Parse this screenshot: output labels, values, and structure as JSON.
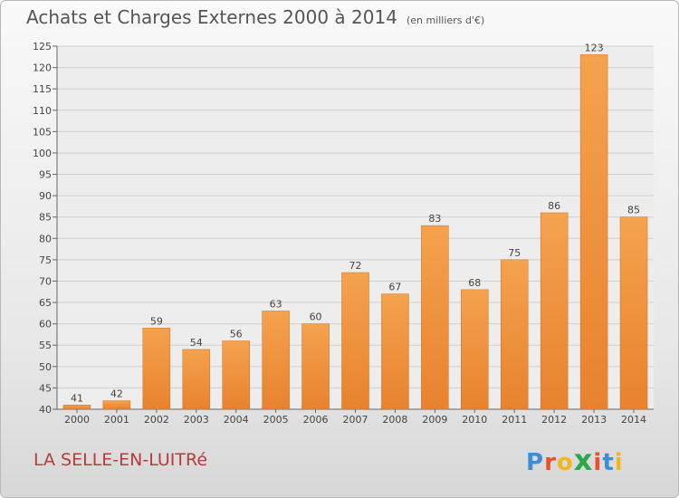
{
  "chart_data": {
    "type": "bar",
    "title": "Achats et Charges Externes 2000 à 2014",
    "subtitle": "(en milliers d'€)",
    "categories": [
      "2000",
      "2001",
      "2002",
      "2003",
      "2004",
      "2005",
      "2006",
      "2007",
      "2008",
      "2009",
      "2010",
      "2011",
      "2012",
      "2013",
      "2014"
    ],
    "values": [
      41,
      42,
      59,
      54,
      56,
      63,
      60,
      72,
      67,
      83,
      68,
      75,
      86,
      123,
      85
    ],
    "ylim": [
      40,
      125
    ],
    "yticks": [
      40,
      45,
      50,
      55,
      60,
      65,
      70,
      75,
      80,
      85,
      90,
      95,
      100,
      105,
      110,
      115,
      120,
      125
    ],
    "grid": true,
    "bar_color": "#e8822f",
    "bar_color_light": "#f4a24e"
  },
  "location": "LA SELLE-EN-LUITRé",
  "brand": {
    "letters": [
      "P",
      "r",
      "o",
      "x",
      "i",
      "t",
      "i"
    ],
    "colors": [
      "#3a8fd6",
      "#e9502a",
      "#f2b51e",
      "#2aa84a",
      "#e9502a",
      "#3a8fd6",
      "#f2b51e"
    ]
  }
}
